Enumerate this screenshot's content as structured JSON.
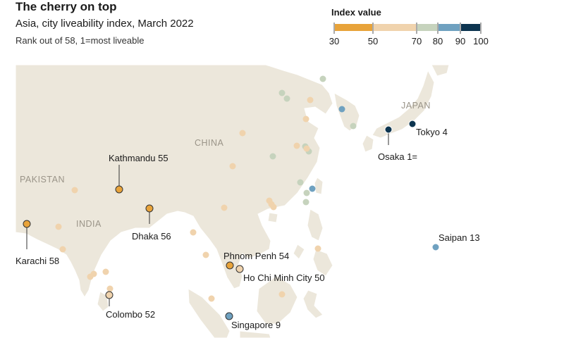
{
  "header": {
    "title": "The cherry on top",
    "subtitle": "Asia, city liveability index, March 2022",
    "note": "Rank out of 58, 1=most liveable"
  },
  "legend": {
    "title": "Index value",
    "ticks": [
      "30",
      "50",
      "70",
      "80",
      "90",
      "100"
    ],
    "bins": [
      {
        "from": 30,
        "to": 50,
        "color": "#e8a33a"
      },
      {
        "from": 50,
        "to": 70,
        "color": "#f0d3ad"
      },
      {
        "from": 70,
        "to": 80,
        "color": "#c6d3bd"
      },
      {
        "from": 80,
        "to": 90,
        "color": "#6fa1c0"
      },
      {
        "from": 90,
        "to": 100,
        "color": "#0d3550"
      }
    ]
  },
  "map_colors": {
    "sea": "#ffffff",
    "land": "#ece7db"
  },
  "countries": [
    {
      "name": "JAPAN"
    },
    {
      "name": "CHINA"
    },
    {
      "name": "PAKISTAN"
    },
    {
      "name": "INDIA"
    }
  ],
  "labeled_cities": [
    {
      "name": "Tokyo",
      "rank": "4"
    },
    {
      "name": "Osaka",
      "rank": "1="
    },
    {
      "name": "Kathmandu",
      "rank": "55"
    },
    {
      "name": "Dhaka",
      "rank": "56"
    },
    {
      "name": "Karachi",
      "rank": "58"
    },
    {
      "name": "Phnom Penh",
      "rank": "54"
    },
    {
      "name": "Ho Chi Minh City",
      "rank": "50"
    },
    {
      "name": "Saipan",
      "rank": "13"
    },
    {
      "name": "Colombo",
      "rank": "52"
    },
    {
      "name": "Singapore",
      "rank": "9"
    }
  ]
}
